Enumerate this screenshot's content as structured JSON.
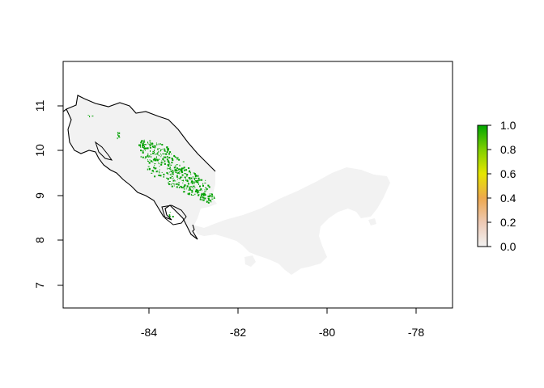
{
  "map": {
    "x_ticks": [
      "-84",
      "-82",
      "-80",
      "-78"
    ],
    "y_ticks": [
      "7",
      "8",
      "9",
      "10",
      "11"
    ],
    "x_tick_values": [
      -84,
      -82,
      -80,
      -78
    ],
    "y_tick_values": [
      7,
      8,
      9,
      10,
      11
    ],
    "xlim": [
      -85.8,
      -76.9
    ],
    "ylim": [
      6.5,
      11.9
    ],
    "land_color": "#f2f2f2",
    "border_color": "#000000",
    "presence_color": "#00a000"
  },
  "legend": {
    "ticks": [
      "0.0",
      "0.2",
      "0.4",
      "0.6",
      "0.8",
      "1.0"
    ],
    "tick_values": [
      0,
      0.2,
      0.4,
      0.6,
      0.8,
      1.0
    ],
    "gradient_colors": [
      "#f2f2f2",
      "#ebb48a",
      "#e6e600",
      "#8fd000",
      "#00a600"
    ]
  }
}
